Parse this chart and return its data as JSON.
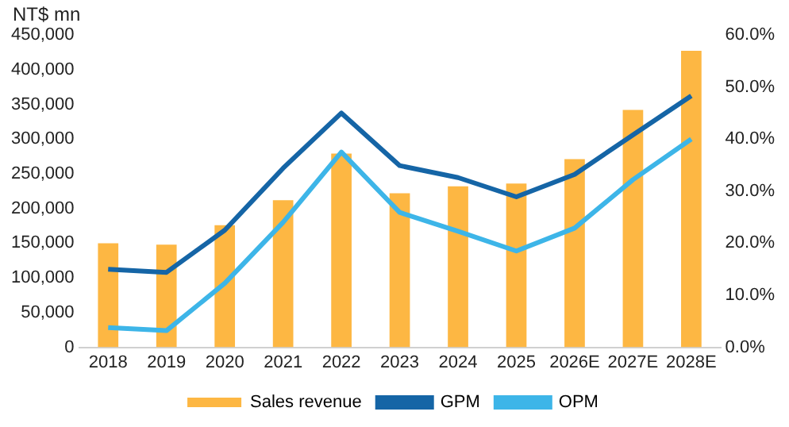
{
  "chart_data": {
    "type": "bar",
    "ylabel": "NT$ mn",
    "categories": [
      "2018",
      "2019",
      "2020",
      "2021",
      "2022",
      "2023",
      "2024",
      "2025",
      "2026E",
      "2027E",
      "2028E"
    ],
    "series": [
      {
        "name": "Sales revenue",
        "color": "#fdb743",
        "values": [
          150000,
          148000,
          176000,
          212000,
          279000,
          222000,
          232000,
          236000,
          271000,
          342000,
          427000
        ]
      },
      {
        "name": "GPM",
        "type": "line",
        "axis": "y2",
        "color": "#1565a6",
        "values": [
          15.0,
          14.4,
          22.5,
          34.4,
          45.0,
          34.9,
          32.6,
          28.9,
          33.2,
          40.8,
          48.3
        ]
      },
      {
        "name": "OPM",
        "type": "line",
        "axis": "y2",
        "color": "#3db5e8",
        "values": [
          3.8,
          3.2,
          12.3,
          24.0,
          37.5,
          25.9,
          22.3,
          18.5,
          22.9,
          32.2,
          40.0
        ]
      }
    ],
    "ylim": [
      0,
      450000
    ],
    "yticks": [
      {
        "value": 0,
        "label": "0"
      },
      {
        "value": 50000,
        "label": "50,000"
      },
      {
        "value": 100000,
        "label": "100,000"
      },
      {
        "value": 150000,
        "label": "150,000"
      },
      {
        "value": 200000,
        "label": "200,000"
      },
      {
        "value": 250000,
        "label": "250,000"
      },
      {
        "value": 300000,
        "label": "300,000"
      },
      {
        "value": 350000,
        "label": "350,000"
      },
      {
        "value": 400000,
        "label": "400,000"
      },
      {
        "value": 450000,
        "label": "450,000"
      }
    ],
    "y2lim": [
      0,
      60
    ],
    "y2ticks": [
      {
        "value": 0,
        "label": "0.0%"
      },
      {
        "value": 10,
        "label": "10.0%"
      },
      {
        "value": 20,
        "label": "20.0%"
      },
      {
        "value": 30,
        "label": "30.0%"
      },
      {
        "value": 40,
        "label": "40.0%"
      },
      {
        "value": 50,
        "label": "50.0%"
      },
      {
        "value": 60,
        "label": "60.0%"
      }
    ],
    "legend": "bottom",
    "grid": false,
    "marker": "none"
  }
}
